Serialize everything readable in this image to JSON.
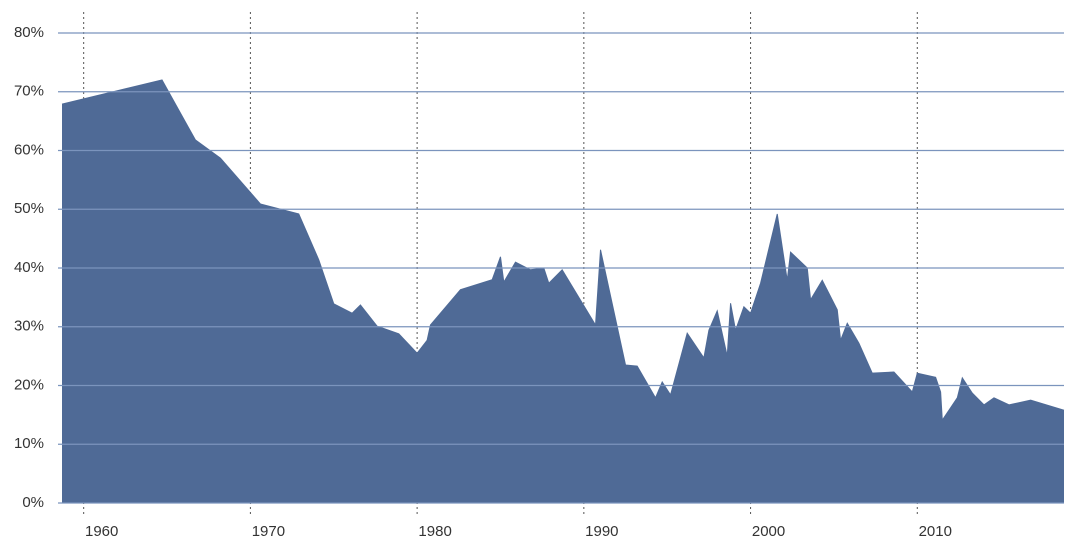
{
  "chart_data": {
    "type": "area",
    "x": [
      1958.7,
      1964.7,
      1966.7,
      1968.2,
      1970.6,
      1972.9,
      1974.1,
      1975.0,
      1976.1,
      1976.6,
      1977.6,
      1978.9,
      1980.0,
      1980.6,
      1980.8,
      1982.6,
      1984.5,
      1985.0,
      1985.2,
      1985.9,
      1986.8,
      1987.6,
      1987.9,
      1988.7,
      1990.7,
      1991.0,
      1992.5,
      1993.2,
      1994.3,
      1994.7,
      1995.2,
      1995.8,
      1996.2,
      1997.2,
      1997.5,
      1998.0,
      1998.6,
      1998.8,
      1999.1,
      1999.6,
      2000.0,
      2000.6,
      2001.6,
      2002.2,
      2002.4,
      2003.4,
      2003.6,
      2004.3,
      2005.2,
      2005.4,
      2005.8,
      2006.5,
      2007.3,
      2008.6,
      2009.7,
      2010.0,
      2011.1,
      2011.4,
      2011.5,
      2012.4,
      2012.7,
      2013.3,
      2014.0,
      2014.6,
      2015.5,
      2016.8,
      2018.8
    ],
    "values": [
      67.9,
      72.0,
      61.8,
      58.7,
      50.9,
      49.2,
      41.4,
      33.9,
      32.3,
      33.7,
      30.1,
      28.8,
      25.5,
      27.7,
      30.3,
      36.3,
      38.0,
      41.9,
      37.6,
      41.0,
      39.7,
      40.0,
      37.4,
      39.7,
      30.3,
      43.1,
      23.5,
      23.3,
      17.9,
      20.6,
      18.4,
      24.7,
      28.9,
      24.7,
      29.4,
      32.7,
      25.0,
      34.0,
      29.4,
      33.4,
      32.3,
      37.4,
      49.2,
      37.9,
      42.7,
      40.0,
      34.6,
      37.9,
      32.9,
      27.7,
      30.6,
      27.2,
      22.1,
      22.3,
      18.9,
      22.1,
      21.4,
      18.9,
      14.1,
      17.9,
      21.3,
      18.7,
      16.7,
      17.9,
      16.7,
      17.5,
      15.8
    ],
    "color": "#4f6a96",
    "xlim": [
      1958.7,
      2018.8
    ],
    "xticks": [
      1960,
      1970,
      1980,
      1990,
      2000,
      2010
    ],
    "ylim": [
      0,
      80
    ],
    "yticks": [
      {
        "value": 0,
        "label": "0%"
      },
      {
        "value": 10,
        "label": "10%"
      },
      {
        "value": 20,
        "label": "20%"
      },
      {
        "value": 30,
        "label": "30%"
      },
      {
        "value": 40,
        "label": "40%"
      },
      {
        "value": 50,
        "label": "50%"
      },
      {
        "value": 60,
        "label": "60%"
      },
      {
        "value": 70,
        "label": "70%"
      },
      {
        "value": 80,
        "label": "80%"
      }
    ],
    "grid": true
  }
}
